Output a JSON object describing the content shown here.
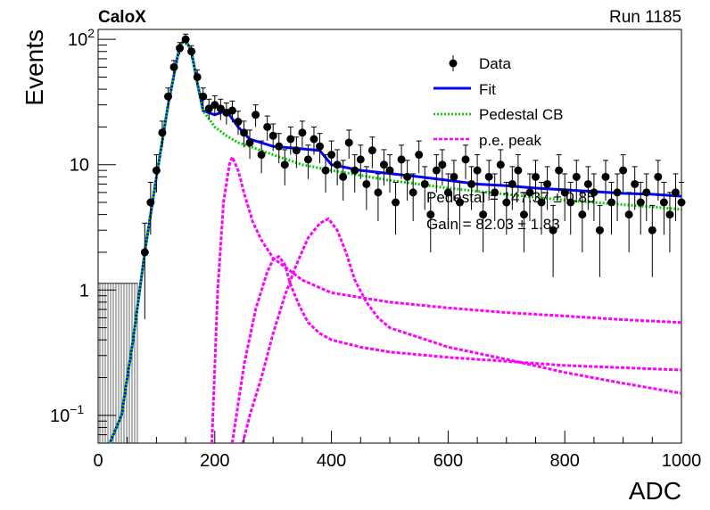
{
  "header": {
    "experiment": "CaloX",
    "run": "Run 1185"
  },
  "chart_data": {
    "type": "line",
    "xlabel": "ADC",
    "ylabel": "Events",
    "xlim": [
      0,
      1000
    ],
    "ylim": [
      0.06,
      120
    ],
    "yscale": "log",
    "x_ticks": [
      0,
      200,
      400,
      600,
      800,
      1000
    ],
    "x_tick_labels": [
      "0",
      "200",
      "400",
      "600",
      "800",
      "1000"
    ],
    "y_ticks": [
      0.1,
      1,
      10,
      100
    ],
    "legend": {
      "placement": "top-right",
      "entries": [
        {
          "label": "Data",
          "style": "marker"
        },
        {
          "label": "Fit",
          "style": "solid",
          "color": "#0000ff"
        },
        {
          "label": "Pedestal CB",
          "style": "dotted",
          "color": "#00cc00"
        },
        {
          "label": "p.e. peak",
          "style": "dashed",
          "color": "#ff00ff"
        }
      ]
    },
    "annotations": [
      "Pedestal = 147.37 ± 0.85",
      "Gain = 82.03 ± 1.83"
    ],
    "data": {
      "x": [
        80,
        90,
        100,
        110,
        120,
        130,
        140,
        150,
        160,
        170,
        180,
        190,
        200,
        210,
        220,
        230,
        240,
        250,
        260,
        270,
        280,
        290,
        300,
        310,
        320,
        330,
        340,
        350,
        360,
        370,
        380,
        390,
        400,
        410,
        420,
        430,
        440,
        450,
        460,
        470,
        480,
        490,
        500,
        510,
        520,
        530,
        540,
        550,
        560,
        570,
        580,
        590,
        600,
        610,
        620,
        630,
        640,
        650,
        660,
        670,
        680,
        690,
        700,
        710,
        720,
        730,
        740,
        750,
        760,
        770,
        780,
        790,
        800,
        810,
        820,
        830,
        840,
        850,
        860,
        870,
        880,
        890,
        900,
        910,
        920,
        930,
        940,
        950,
        960,
        970,
        980,
        990,
        1000
      ],
      "y": [
        2,
        5,
        9,
        18,
        35,
        60,
        85,
        100,
        80,
        50,
        35,
        28,
        30,
        28,
        26,
        27,
        22,
        18,
        15,
        25,
        12,
        20,
        17,
        14,
        10,
        16,
        13,
        18,
        11,
        16,
        14,
        9,
        12,
        10,
        8,
        15,
        9,
        11,
        7,
        13,
        6,
        10,
        9,
        5,
        11,
        8,
        6,
        12,
        7,
        4,
        9,
        10,
        6,
        8,
        5,
        11,
        7,
        9,
        4,
        8,
        6,
        10,
        5,
        7,
        9,
        4,
        6,
        8,
        5,
        7,
        3,
        9,
        6,
        5,
        8,
        4,
        7,
        6,
        3,
        8,
        5,
        6,
        9,
        4,
        7,
        5,
        6,
        3,
        8,
        5,
        4,
        6,
        5
      ]
    },
    "fit": {
      "x": [
        20,
        40,
        60,
        80,
        100,
        120,
        140,
        150,
        160,
        170,
        180,
        200,
        220,
        240,
        260,
        300,
        340,
        380,
        400,
        450,
        500,
        550,
        600,
        650,
        700,
        750,
        800,
        850,
        900,
        950,
        1000
      ],
      "y": [
        0.05,
        0.1,
        0.4,
        2,
        8,
        30,
        90,
        100,
        80,
        45,
        27,
        25,
        27,
        20,
        16,
        14,
        13.5,
        13,
        10,
        9,
        8.5,
        8,
        7.5,
        7,
        6.8,
        6.5,
        6.3,
        6.1,
        5.9,
        5.8,
        5.6
      ]
    },
    "pedestal": {
      "x": [
        20,
        40,
        60,
        80,
        100,
        120,
        140,
        150,
        160,
        170,
        180,
        200,
        220,
        240,
        260,
        300,
        350,
        400,
        500,
        600,
        700,
        800,
        900,
        1000
      ],
      "y": [
        0.05,
        0.1,
        0.4,
        2,
        8,
        30,
        90,
        100,
        80,
        45,
        27,
        20,
        17,
        15,
        14,
        12,
        10,
        9,
        7.5,
        6.5,
        5.8,
        5.2,
        4.8,
        4.4
      ]
    },
    "pe_peaks": [
      {
        "x": [
          195,
          205,
          215,
          225,
          230,
          240,
          250,
          265,
          280,
          300,
          350,
          400,
          500,
          600,
          700,
          800,
          900,
          1000
        ],
        "y": [
          0.06,
          1.0,
          5,
          10,
          11.5,
          9,
          6,
          3.5,
          2.5,
          1.8,
          1.2,
          0.95,
          0.8,
          0.72,
          0.66,
          0.62,
          0.58,
          0.55
        ]
      },
      {
        "x": [
          230,
          250,
          270,
          290,
          300,
          310,
          320,
          330,
          345,
          360,
          380,
          400,
          450,
          500,
          600,
          700,
          800,
          900,
          1000
        ],
        "y": [
          0.06,
          0.25,
          0.7,
          1.4,
          1.75,
          1.85,
          1.6,
          1.1,
          0.75,
          0.55,
          0.45,
          0.4,
          0.35,
          0.32,
          0.29,
          0.27,
          0.25,
          0.24,
          0.23
        ]
      },
      {
        "x": [
          248,
          260,
          280,
          300,
          320,
          340,
          360,
          380,
          395,
          410,
          425,
          440,
          460,
          480,
          500,
          600,
          700,
          800,
          900,
          1000
        ],
        "y": [
          0.06,
          0.1,
          0.2,
          0.45,
          0.9,
          1.6,
          2.6,
          3.4,
          3.7,
          3.0,
          2.0,
          1.2,
          0.8,
          0.6,
          0.5,
          0.35,
          0.28,
          0.22,
          0.18,
          0.15
        ]
      }
    ]
  }
}
